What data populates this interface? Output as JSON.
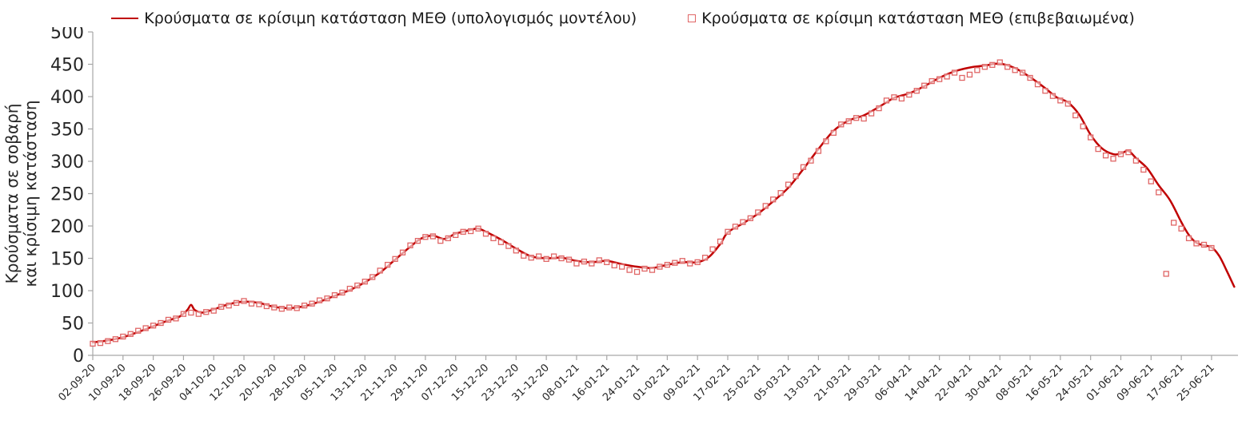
{
  "colors": {
    "model_line": "#c00000",
    "confirmed_marker": "#e06666",
    "axis": "#a6a6a6",
    "text": "#262626"
  },
  "chart_data": {
    "type": "line",
    "title": "",
    "ylabel_lines": [
      "Κρούσματα σε σοβαρή",
      "και κρίσιμη κατάσταση"
    ],
    "ylim": [
      0,
      500
    ],
    "ytick_values": [
      0,
      50,
      100,
      150,
      200,
      250,
      300,
      350,
      400,
      450,
      500
    ],
    "grid": "off",
    "legend_position": "top",
    "x_max_day": 303,
    "x_tick_days": [
      0,
      8,
      16,
      24,
      32,
      40,
      48,
      56,
      64,
      72,
      80,
      88,
      96,
      104,
      112,
      120,
      128,
      136,
      144,
      152,
      160,
      168,
      176,
      184,
      192,
      200,
      208,
      216,
      224,
      232,
      240,
      248,
      256,
      264,
      272,
      280,
      288,
      296
    ],
    "x_tick_labels": [
      "02-09-20",
      "10-09-20",
      "18-09-20",
      "26-09-20",
      "04-10-20",
      "12-10-20",
      "20-10-20",
      "28-10-20",
      "05-11-20",
      "13-11-20",
      "21-11-20",
      "29-11-20",
      "07-12-20",
      "15-12-20",
      "23-12-20",
      "31-12-20",
      "08-01-21",
      "16-01-21",
      "24-01-21",
      "01-02-21",
      "09-02-21",
      "17-02-21",
      "25-02-21",
      "05-03-21",
      "13-03-21",
      "21-03-21",
      "29-03-21",
      "06-04-21",
      "14-04-21",
      "22-04-21",
      "30-04-21",
      "08-05-21",
      "16-05-21",
      "24-05-21",
      "01-06-21",
      "09-06-21",
      "17-06-21",
      "25-06-21"
    ],
    "series": [
      {
        "name": "Κρούσματα σε κρίσιμη κατάσταση ΜΕΘ (υπολογισμός μοντέλου)",
        "type": "line",
        "color": "#c00000",
        "points": [
          [
            0,
            20
          ],
          [
            4,
            23
          ],
          [
            8,
            28
          ],
          [
            12,
            36
          ],
          [
            16,
            45
          ],
          [
            20,
            54
          ],
          [
            23,
            60
          ],
          [
            25,
            70
          ],
          [
            26,
            78
          ],
          [
            27,
            70
          ],
          [
            29,
            66
          ],
          [
            32,
            71
          ],
          [
            36,
            79
          ],
          [
            40,
            83
          ],
          [
            44,
            81
          ],
          [
            48,
            75
          ],
          [
            52,
            73
          ],
          [
            56,
            76
          ],
          [
            60,
            83
          ],
          [
            64,
            92
          ],
          [
            68,
            101
          ],
          [
            72,
            113
          ],
          [
            76,
            128
          ],
          [
            80,
            148
          ],
          [
            84,
            168
          ],
          [
            87,
            181
          ],
          [
            90,
            185
          ],
          [
            93,
            180
          ],
          [
            96,
            188
          ],
          [
            100,
            194
          ],
          [
            102,
            196
          ],
          [
            104,
            191
          ],
          [
            108,
            179
          ],
          [
            112,
            165
          ],
          [
            116,
            153
          ],
          [
            120,
            150
          ],
          [
            124,
            151
          ],
          [
            128,
            146
          ],
          [
            132,
            144
          ],
          [
            136,
            146
          ],
          [
            140,
            141
          ],
          [
            144,
            137
          ],
          [
            148,
            135
          ],
          [
            152,
            140
          ],
          [
            156,
            144
          ],
          [
            160,
            144
          ],
          [
            163,
            152
          ],
          [
            166,
            172
          ],
          [
            168,
            190
          ],
          [
            172,
            204
          ],
          [
            176,
            219
          ],
          [
            180,
            238
          ],
          [
            184,
            259
          ],
          [
            188,
            288
          ],
          [
            192,
            319
          ],
          [
            196,
            347
          ],
          [
            200,
            363
          ],
          [
            204,
            371
          ],
          [
            208,
            384
          ],
          [
            212,
            398
          ],
          [
            216,
            405
          ],
          [
            220,
            416
          ],
          [
            224,
            429
          ],
          [
            228,
            439
          ],
          [
            232,
            445
          ],
          [
            236,
            448
          ],
          [
            240,
            451
          ],
          [
            244,
            444
          ],
          [
            248,
            430
          ],
          [
            252,
            413
          ],
          [
            255,
            399
          ],
          [
            258,
            391
          ],
          [
            261,
            372
          ],
          [
            264,
            341
          ],
          [
            267,
            320
          ],
          [
            270,
            311
          ],
          [
            272,
            312
          ],
          [
            274,
            316
          ],
          [
            276,
            305
          ],
          [
            279,
            289
          ],
          [
            282,
            263
          ],
          [
            285,
            240
          ],
          [
            288,
            206
          ],
          [
            290,
            186
          ],
          [
            292,
            174
          ],
          [
            294,
            170
          ],
          [
            296,
            167
          ],
          [
            298,
            154
          ],
          [
            300,
            131
          ],
          [
            302,
            106
          ]
        ]
      },
      {
        "name": "Κρούσματα σε κρίσιμη κατάσταση ΜΕΘ (επιβεβαιωμένα)",
        "type": "scatter",
        "color": "#e06666",
        "points": [
          [
            0,
            18
          ],
          [
            2,
            19
          ],
          [
            4,
            22
          ],
          [
            6,
            25
          ],
          [
            8,
            29
          ],
          [
            10,
            33
          ],
          [
            12,
            38
          ],
          [
            14,
            42
          ],
          [
            16,
            46
          ],
          [
            18,
            50
          ],
          [
            20,
            55
          ],
          [
            22,
            57
          ],
          [
            24,
            64
          ],
          [
            26,
            66
          ],
          [
            28,
            64
          ],
          [
            30,
            67
          ],
          [
            32,
            69
          ],
          [
            34,
            75
          ],
          [
            36,
            77
          ],
          [
            38,
            81
          ],
          [
            40,
            84
          ],
          [
            42,
            80
          ],
          [
            44,
            79
          ],
          [
            46,
            76
          ],
          [
            48,
            74
          ],
          [
            50,
            72
          ],
          [
            52,
            74
          ],
          [
            54,
            73
          ],
          [
            56,
            77
          ],
          [
            58,
            80
          ],
          [
            60,
            85
          ],
          [
            62,
            88
          ],
          [
            64,
            93
          ],
          [
            66,
            97
          ],
          [
            68,
            103
          ],
          [
            70,
            108
          ],
          [
            72,
            114
          ],
          [
            74,
            121
          ],
          [
            76,
            131
          ],
          [
            78,
            140
          ],
          [
            80,
            149
          ],
          [
            82,
            159
          ],
          [
            84,
            170
          ],
          [
            86,
            177
          ],
          [
            88,
            183
          ],
          [
            90,
            184
          ],
          [
            92,
            177
          ],
          [
            94,
            181
          ],
          [
            96,
            186
          ],
          [
            98,
            191
          ],
          [
            100,
            192
          ],
          [
            102,
            196
          ],
          [
            104,
            188
          ],
          [
            106,
            181
          ],
          [
            108,
            175
          ],
          [
            110,
            169
          ],
          [
            112,
            162
          ],
          [
            114,
            154
          ],
          [
            116,
            151
          ],
          [
            118,
            153
          ],
          [
            120,
            149
          ],
          [
            122,
            153
          ],
          [
            124,
            150
          ],
          [
            126,
            148
          ],
          [
            128,
            142
          ],
          [
            130,
            145
          ],
          [
            132,
            142
          ],
          [
            134,
            147
          ],
          [
            136,
            144
          ],
          [
            138,
            139
          ],
          [
            140,
            137
          ],
          [
            142,
            132
          ],
          [
            144,
            129
          ],
          [
            146,
            134
          ],
          [
            148,
            132
          ],
          [
            150,
            137
          ],
          [
            152,
            140
          ],
          [
            154,
            143
          ],
          [
            156,
            146
          ],
          [
            158,
            142
          ],
          [
            160,
            144
          ],
          [
            162,
            151
          ],
          [
            164,
            164
          ],
          [
            166,
            176
          ],
          [
            168,
            191
          ],
          [
            170,
            199
          ],
          [
            172,
            206
          ],
          [
            174,
            212
          ],
          [
            176,
            221
          ],
          [
            178,
            231
          ],
          [
            180,
            241
          ],
          [
            182,
            251
          ],
          [
            184,
            264
          ],
          [
            186,
            277
          ],
          [
            188,
            291
          ],
          [
            190,
            301
          ],
          [
            192,
            316
          ],
          [
            194,
            331
          ],
          [
            196,
            344
          ],
          [
            198,
            357
          ],
          [
            200,
            362
          ],
          [
            202,
            367
          ],
          [
            204,
            366
          ],
          [
            206,
            374
          ],
          [
            208,
            382
          ],
          [
            210,
            394
          ],
          [
            212,
            399
          ],
          [
            214,
            397
          ],
          [
            216,
            403
          ],
          [
            218,
            409
          ],
          [
            220,
            417
          ],
          [
            222,
            424
          ],
          [
            224,
            427
          ],
          [
            226,
            431
          ],
          [
            228,
            437
          ],
          [
            230,
            429
          ],
          [
            232,
            434
          ],
          [
            234,
            441
          ],
          [
            236,
            446
          ],
          [
            238,
            449
          ],
          [
            240,
            453
          ],
          [
            242,
            446
          ],
          [
            244,
            441
          ],
          [
            246,
            437
          ],
          [
            248,
            429
          ],
          [
            250,
            419
          ],
          [
            252,
            409
          ],
          [
            254,
            401
          ],
          [
            256,
            394
          ],
          [
            258,
            389
          ],
          [
            260,
            371
          ],
          [
            262,
            354
          ],
          [
            264,
            337
          ],
          [
            266,
            319
          ],
          [
            268,
            309
          ],
          [
            270,
            304
          ],
          [
            272,
            311
          ],
          [
            274,
            314
          ],
          [
            276,
            301
          ],
          [
            278,
            287
          ],
          [
            280,
            269
          ],
          [
            282,
            252
          ],
          [
            284,
            126
          ],
          [
            286,
            205
          ],
          [
            288,
            196
          ],
          [
            290,
            181
          ],
          [
            292,
            173
          ],
          [
            294,
            171
          ],
          [
            296,
            166
          ]
        ]
      }
    ]
  }
}
